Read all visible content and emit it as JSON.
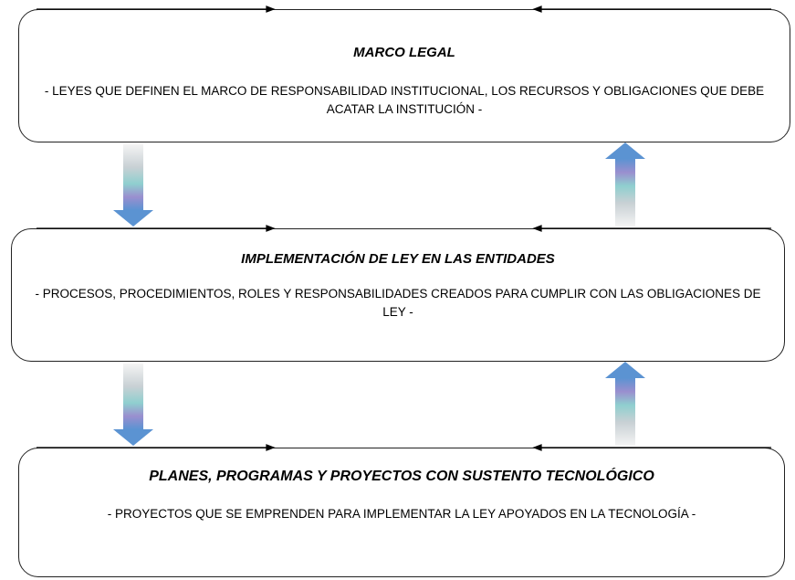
{
  "boxes": [
    {
      "title": "MARCO LEGAL",
      "text": "- LEYES QUE DEFINEN EL MARCO DE RESPONSABILIDAD INSTITUCIONAL, LOS RECURSOS Y OBLIGACIONES QUE DEBE ACATAR LA INSTITUCIÓN -"
    },
    {
      "title": "IMPLEMENTACIÓN DE LEY EN LAS ENTIDADES",
      "text": "- PROCESOS, PROCEDIMIENTOS, ROLES Y RESPONSABILIDADES CREADOS PARA CUMPLIR CON LAS OBLIGACIONES DE LEY -"
    },
    {
      "title": "PLANES, PROGRAMAS Y PROYECTOS CON SUSTENTO TECNOLÓGICO",
      "text": "- PROYECTOS QUE SE EMPRENDEN PARA IMPLEMENTAR LA LEY APOYADOS EN LA TECNOLOGÍA -"
    }
  ]
}
